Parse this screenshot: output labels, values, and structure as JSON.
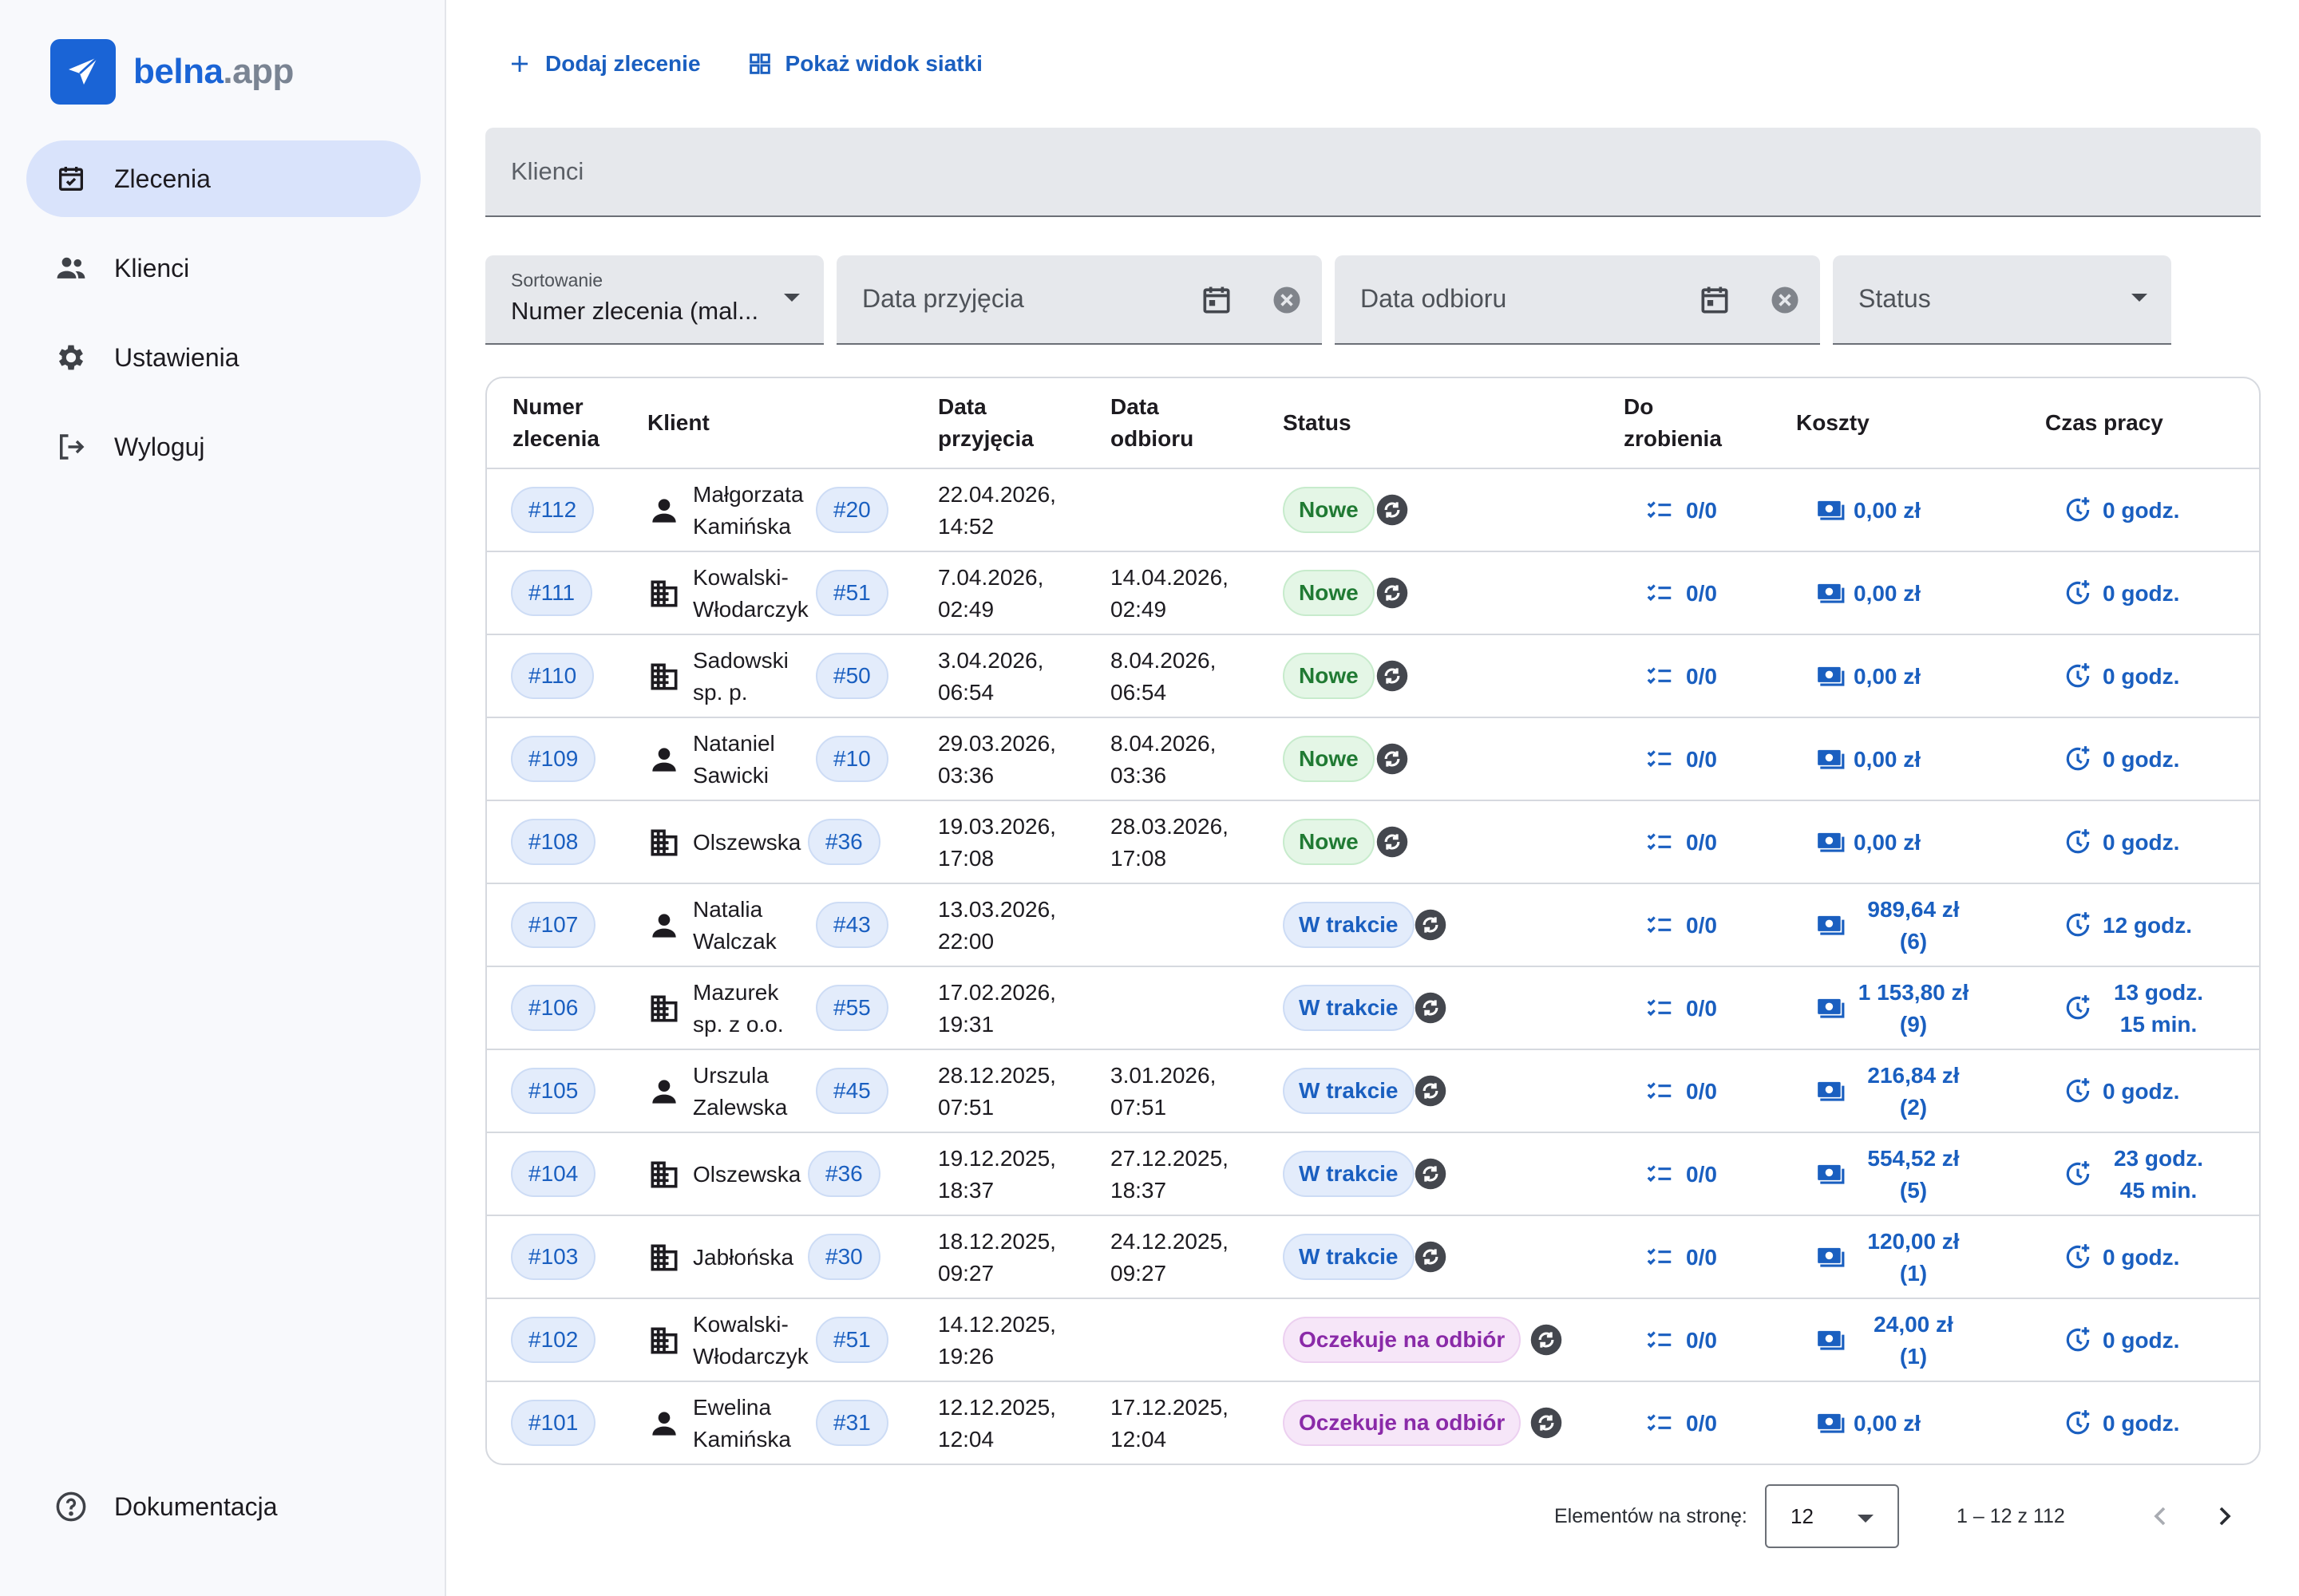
{
  "logo": {
    "part1": "belna",
    "part2": ".app"
  },
  "nav": {
    "items": [
      {
        "label": "Zlecenia",
        "icon": "calendar-check-icon",
        "active": true
      },
      {
        "label": "Klienci",
        "icon": "people-icon"
      },
      {
        "label": "Ustawienia",
        "icon": "gear-icon"
      },
      {
        "label": "Wyloguj",
        "icon": "logout-icon"
      }
    ],
    "docs": {
      "label": "Dokumentacja",
      "icon": "help-circle-icon"
    }
  },
  "toolbar": {
    "add_label": "Dodaj zlecenie",
    "grid_label": "Pokaż widok siatki"
  },
  "search": {
    "placeholder": "Klienci"
  },
  "filters": {
    "sort_label": "Sortowanie",
    "sort_value": "Numer zlecenia (mal...",
    "date_in": "Data przyjęcia",
    "date_out": "Data odbioru",
    "status": "Status"
  },
  "table": {
    "headers": {
      "number": [
        "Numer",
        "zlecenia"
      ],
      "client": "Klient",
      "date_in": [
        "Data",
        "przyjęcia"
      ],
      "date_out": [
        "Data",
        "odbioru"
      ],
      "status": "Status",
      "todo": [
        "Do",
        "zrobienia"
      ],
      "costs": "Koszty",
      "time": "Czas pracy"
    },
    "rows": [
      {
        "num": "#112",
        "ctype": "person",
        "c1": "Małgorzata",
        "c2": "Kamińska",
        "cid": "#20",
        "in1": "22.04.2026,",
        "in2": "14:52",
        "out1": "",
        "out2": "",
        "status": "Nowe",
        "st": "new",
        "todo": "0/0",
        "cost1": "0,00 zł",
        "cost2": "",
        "t1": "0 godz.",
        "t2": ""
      },
      {
        "num": "#111",
        "ctype": "company",
        "c1": "Kowalski-",
        "c2": "Włodarczyk",
        "cid": "#51",
        "in1": "7.04.2026,",
        "in2": "02:49",
        "out1": "14.04.2026,",
        "out2": "02:49",
        "status": "Nowe",
        "st": "new",
        "todo": "0/0",
        "cost1": "0,00 zł",
        "cost2": "",
        "t1": "0 godz.",
        "t2": ""
      },
      {
        "num": "#110",
        "ctype": "company",
        "c1": "Sadowski",
        "c2": "sp. p.",
        "cid": "#50",
        "in1": "3.04.2026,",
        "in2": "06:54",
        "out1": "8.04.2026,",
        "out2": "06:54",
        "status": "Nowe",
        "st": "new",
        "todo": "0/0",
        "cost1": "0,00 zł",
        "cost2": "",
        "t1": "0 godz.",
        "t2": ""
      },
      {
        "num": "#109",
        "ctype": "person",
        "c1": "Nataniel",
        "c2": "Sawicki",
        "cid": "#10",
        "in1": "29.03.2026,",
        "in2": "03:36",
        "out1": "8.04.2026,",
        "out2": "03:36",
        "status": "Nowe",
        "st": "new",
        "todo": "0/0",
        "cost1": "0,00 zł",
        "cost2": "",
        "t1": "0 godz.",
        "t2": ""
      },
      {
        "num": "#108",
        "ctype": "company",
        "c1": "Olszewska",
        "c2": "",
        "cid": "#36",
        "in1": "19.03.2026,",
        "in2": "17:08",
        "out1": "28.03.2026,",
        "out2": "17:08",
        "status": "Nowe",
        "st": "new",
        "todo": "0/0",
        "cost1": "0,00 zł",
        "cost2": "",
        "t1": "0 godz.",
        "t2": ""
      },
      {
        "num": "#107",
        "ctype": "person",
        "c1": "Natalia",
        "c2": "Walczak",
        "cid": "#43",
        "in1": "13.03.2026,",
        "in2": "22:00",
        "out1": "",
        "out2": "",
        "status": "W trakcie",
        "st": "prog",
        "todo": "0/0",
        "cost1": "989,64 zł",
        "cost2": "(6)",
        "t1": "12 godz.",
        "t2": ""
      },
      {
        "num": "#106",
        "ctype": "company",
        "c1": "Mazurek",
        "c2": "sp. z o.o.",
        "cid": "#55",
        "in1": "17.02.2026,",
        "in2": "19:31",
        "out1": "",
        "out2": "",
        "status": "W trakcie",
        "st": "prog",
        "todo": "0/0",
        "cost1": "1 153,80 zł",
        "cost2": "(9)",
        "t1": "13 godz.",
        "t2": "15 min."
      },
      {
        "num": "#105",
        "ctype": "person",
        "c1": "Urszula",
        "c2": "Zalewska",
        "cid": "#45",
        "in1": "28.12.2025,",
        "in2": "07:51",
        "out1": "3.01.2026,",
        "out2": "07:51",
        "status": "W trakcie",
        "st": "prog",
        "todo": "0/0",
        "cost1": "216,84 zł",
        "cost2": "(2)",
        "t1": "0 godz.",
        "t2": ""
      },
      {
        "num": "#104",
        "ctype": "company",
        "c1": "Olszewska",
        "c2": "",
        "cid": "#36",
        "in1": "19.12.2025,",
        "in2": "18:37",
        "out1": "27.12.2025,",
        "out2": "18:37",
        "status": "W trakcie",
        "st": "prog",
        "todo": "0/0",
        "cost1": "554,52 zł",
        "cost2": "(5)",
        "t1": "23 godz.",
        "t2": "45 min."
      },
      {
        "num": "#103",
        "ctype": "company",
        "c1": "Jabłońska",
        "c2": "",
        "cid": "#30",
        "in1": "18.12.2025,",
        "in2": "09:27",
        "out1": "24.12.2025,",
        "out2": "09:27",
        "status": "W trakcie",
        "st": "prog",
        "todo": "0/0",
        "cost1": "120,00 zł",
        "cost2": "(1)",
        "t1": "0 godz.",
        "t2": ""
      },
      {
        "num": "#102",
        "ctype": "company",
        "c1": "Kowalski-",
        "c2": "Włodarczyk",
        "cid": "#51",
        "in1": "14.12.2025,",
        "in2": "19:26",
        "out1": "",
        "out2": "",
        "status": "Oczekuje na odbiór",
        "st": "wait",
        "todo": "0/0",
        "cost1": "24,00 zł",
        "cost2": "(1)",
        "t1": "0 godz.",
        "t2": ""
      },
      {
        "num": "#101",
        "ctype": "person",
        "c1": "Ewelina",
        "c2": "Kamińska",
        "cid": "#31",
        "in1": "12.12.2025,",
        "in2": "12:04",
        "out1": "17.12.2025,",
        "out2": "12:04",
        "status": "Oczekuje na odbiór",
        "st": "wait",
        "todo": "0/0",
        "cost1": "0,00 zł",
        "cost2": "",
        "t1": "0 godz.",
        "t2": ""
      }
    ]
  },
  "pagination": {
    "label": "Elementów na stronę:",
    "per_page": "12",
    "range": "1 – 12 z 112"
  },
  "colors": {
    "accent": "#1a64d6",
    "link": "#1a5fc0",
    "new": "#207a33",
    "in_progress": "#1a5fc0",
    "waiting": "#8a2aa8"
  }
}
